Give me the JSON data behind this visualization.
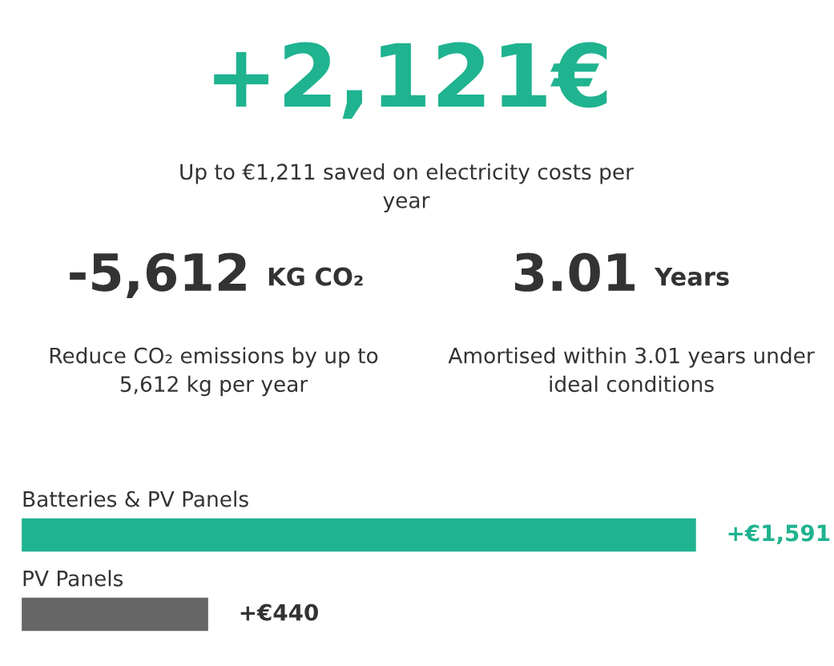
{
  "chart_data": [
    {
      "type": "other",
      "title": "+2,121€",
      "subtitle": "Up to €1,211 saved on electricity costs per year",
      "annotations": [
        "-5,612",
        "KG CO₂",
        "Reduce CO₂ emissions by up to 5,612 kg per year",
        "3.01",
        "Years",
        "Amortised within 3.01 years under ideal conditions"
      ]
    },
    {
      "type": "bar",
      "orientation": "horizontal",
      "categories": [
        "Batteries & PV Panels",
        "PV Panels"
      ],
      "values": [
        1591,
        440
      ],
      "colors": [
        "#1fb38f",
        "#666666"
      ],
      "value_labels": [
        "+€1,591",
        "+€440"
      ]
    }
  ]
}
